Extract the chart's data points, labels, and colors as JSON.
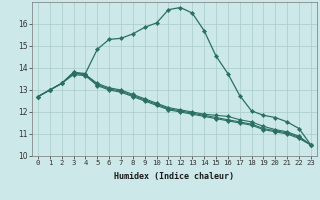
{
  "xlabel": "Humidex (Indice chaleur)",
  "bg_color": "#cce8e8",
  "grid_color": "#aacccc",
  "line_color": "#2a7060",
  "x_values": [
    0,
    1,
    2,
    3,
    4,
    5,
    6,
    7,
    8,
    9,
    10,
    11,
    12,
    13,
    14,
    15,
    16,
    17,
    18,
    19,
    20,
    21,
    22,
    23
  ],
  "line1": [
    12.7,
    13.0,
    13.3,
    13.8,
    13.75,
    14.85,
    15.3,
    15.35,
    15.55,
    15.85,
    16.05,
    16.65,
    16.75,
    16.5,
    15.7,
    14.55,
    13.75,
    12.75,
    12.05,
    11.85,
    11.75,
    11.55,
    11.25,
    10.5
  ],
  "line2": [
    12.7,
    13.0,
    13.3,
    13.8,
    13.7,
    13.25,
    13.05,
    12.95,
    12.75,
    12.55,
    12.35,
    12.15,
    12.05,
    11.95,
    11.85,
    11.75,
    11.65,
    11.55,
    11.45,
    11.25,
    11.15,
    11.05,
    10.85,
    10.5
  ],
  "line3": [
    12.7,
    13.0,
    13.3,
    13.75,
    13.7,
    13.3,
    13.1,
    13.0,
    12.8,
    12.6,
    12.4,
    12.2,
    12.1,
    12.0,
    11.9,
    11.85,
    11.8,
    11.65,
    11.55,
    11.35,
    11.2,
    11.1,
    10.9,
    10.5
  ],
  "line4": [
    12.7,
    13.0,
    13.3,
    13.7,
    13.65,
    13.2,
    13.0,
    12.9,
    12.7,
    12.5,
    12.3,
    12.1,
    12.0,
    11.9,
    11.8,
    11.7,
    11.6,
    11.5,
    11.4,
    11.2,
    11.1,
    11.0,
    10.8,
    10.5
  ],
  "ylim": [
    10,
    17
  ],
  "xlim": [
    -0.5,
    23.5
  ],
  "yticks": [
    10,
    11,
    12,
    13,
    14,
    15,
    16
  ],
  "xticks": [
    0,
    1,
    2,
    3,
    4,
    5,
    6,
    7,
    8,
    9,
    10,
    11,
    12,
    13,
    14,
    15,
    16,
    17,
    18,
    19,
    20,
    21,
    22,
    23
  ],
  "xlabel_fontsize": 6.0,
  "tick_fontsize": 5.2
}
